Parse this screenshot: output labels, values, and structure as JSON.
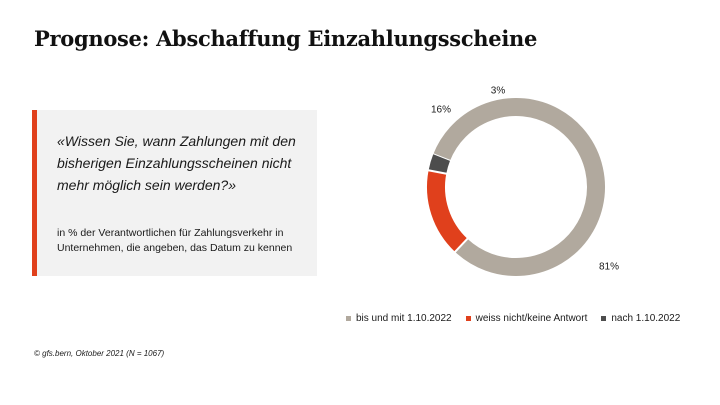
{
  "title": "Prognose: Abschaffung Einzahlungsscheine",
  "question": "«Wissen Sie, wann Zahlungen mit den bisherigen Einzahlungsscheinen nicht mehr möglich sein werden?»",
  "note": "in % der Verantwortlichen für Zahlungsverkehr in Unternehmen, die angeben, das Datum zu kennen",
  "source": "© gfs.bern, Oktober 2021 (N = 1067)",
  "colors": {
    "accent": "#e0401c",
    "box_bg": "#f2f2f2"
  },
  "chart_data": {
    "type": "pie",
    "donut": true,
    "categories": [
      "bis und mit 1.10.2022",
      "weiss nicht/keine Antwort",
      "nach 1.10.2022"
    ],
    "values": [
      81,
      16,
      3
    ],
    "labels": [
      "81%",
      "16%",
      "3%"
    ],
    "colors": [
      "#b1a99e",
      "#e0401c",
      "#4d4d4d"
    ],
    "legend_position": "bottom"
  }
}
